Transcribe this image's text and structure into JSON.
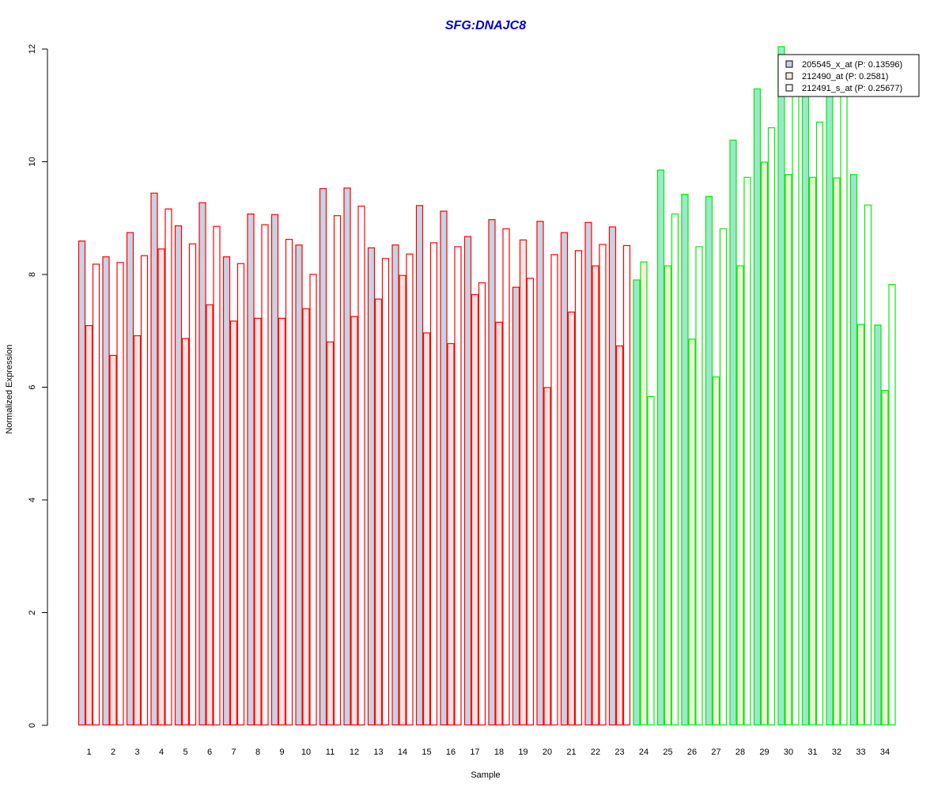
{
  "chart_data": {
    "type": "bar",
    "title": "SFG:DNAJC8",
    "xlabel": "Sample",
    "ylabel": "Normalized Expression",
    "ylim": [
      0,
      12
    ],
    "yticks": [
      0,
      2,
      4,
      6,
      8,
      10,
      12
    ],
    "categories": [
      "1",
      "2",
      "3",
      "4",
      "5",
      "6",
      "7",
      "8",
      "9",
      "10",
      "11",
      "12",
      "13",
      "14",
      "15",
      "16",
      "17",
      "18",
      "19",
      "20",
      "21",
      "22",
      "23",
      "24",
      "25",
      "26",
      "27",
      "28",
      "29",
      "30",
      "31",
      "32",
      "33",
      "34"
    ],
    "groups": [
      {
        "samples": 23,
        "border_color": "#ff0000"
      },
      {
        "samples": 11,
        "border_color": "#00ee00"
      }
    ],
    "legend_position": "top-right",
    "series": [
      {
        "name": "205545_x_at (P: 0.13596)",
        "fill_group1": "#c5d3e3",
        "fill_group2": "#9de6cc",
        "values": [
          8.6,
          8.32,
          8.75,
          9.45,
          8.87,
          9.28,
          8.32,
          9.08,
          9.07,
          8.53,
          9.53,
          9.54,
          8.48,
          8.53,
          9.23,
          9.13,
          8.68,
          8.98,
          7.78,
          8.95,
          8.75,
          8.93,
          8.85,
          7.91,
          9.86,
          9.43,
          9.39,
          10.39,
          11.3,
          12.05,
          11.2,
          11.2,
          9.78,
          7.11
        ]
      },
      {
        "name": "212490_at (P: 0.2581)",
        "fill_group1": "#ffe4e1",
        "fill_group2": "#f2f0d8",
        "values": [
          7.1,
          6.57,
          6.92,
          8.46,
          6.87,
          7.47,
          7.18,
          7.23,
          7.23,
          7.4,
          6.81,
          7.26,
          7.57,
          7.99,
          6.97,
          6.78,
          7.65,
          7.16,
          8.62,
          6.0,
          7.34,
          8.16,
          6.74,
          8.23,
          8.16,
          6.86,
          6.19,
          8.16,
          10.0,
          9.78,
          9.73,
          9.72,
          7.12,
          5.95
        ]
      },
      {
        "name": "212491_s_at (P: 0.25677)",
        "fill_group1": "#ffffff",
        "fill_group2": "#ffffff",
        "values": [
          8.19,
          8.22,
          8.34,
          9.17,
          8.55,
          8.86,
          8.2,
          8.89,
          8.63,
          8.01,
          9.05,
          9.22,
          8.29,
          8.37,
          8.57,
          8.5,
          7.86,
          8.82,
          7.94,
          8.36,
          8.43,
          8.54,
          8.52,
          5.84,
          9.08,
          8.5,
          8.82,
          9.73,
          10.61,
          11.2,
          10.71,
          11.2,
          9.24,
          7.83
        ]
      }
    ],
    "legend_swatches": [
      "#c5d3e3",
      "#ffe4e1",
      "#f8f8f8"
    ]
  }
}
